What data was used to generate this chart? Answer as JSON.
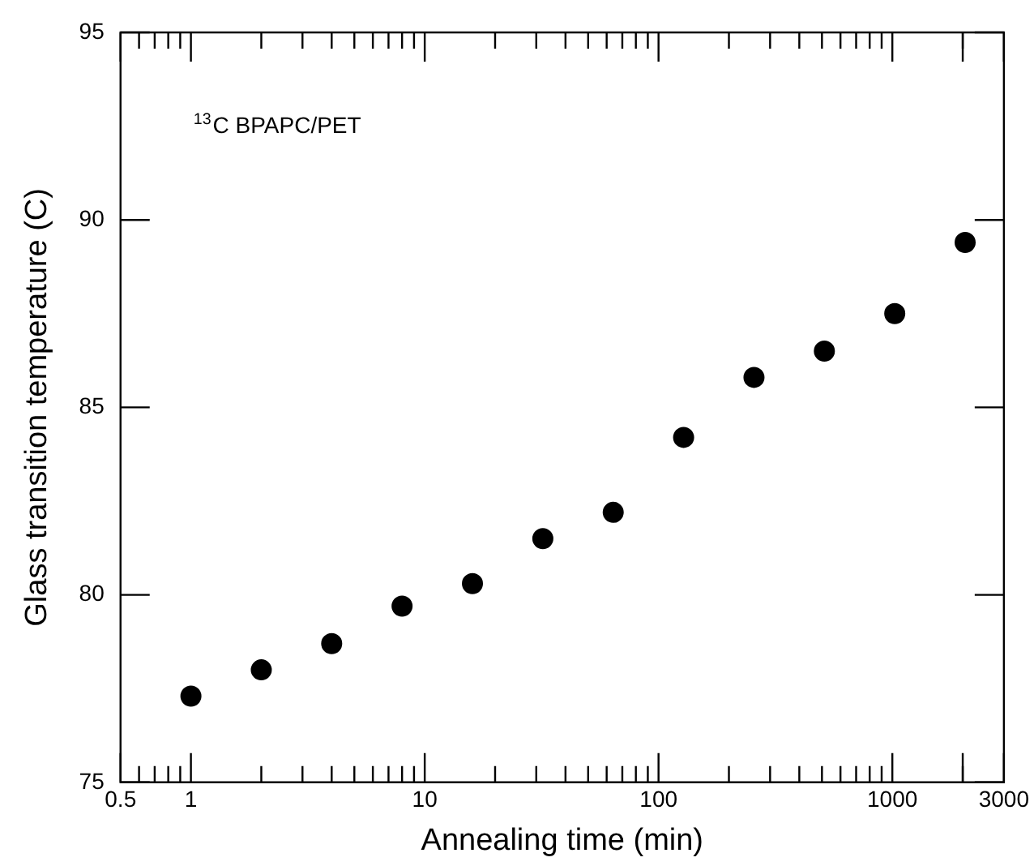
{
  "chart_data": {
    "type": "scatter",
    "xlabel": "Annealing time (min)",
    "ylabel": "Glass transition temperature (C)",
    "annotations": [
      "$^{13}$C BPAPC/PET"
    ],
    "x": [
      1,
      2,
      4,
      8,
      16,
      32,
      64,
      128,
      256,
      512,
      1024,
      2048
    ],
    "series": [
      {
        "color": "#000000",
        "values": [
          77.3,
          78.0,
          78.7,
          79.7,
          80.3,
          81.5,
          82.2,
          84.2,
          85.8,
          86.5,
          87.5,
          89.4
        ]
      }
    ],
    "log": "x",
    "xlim": [
      0.5,
      3000
    ],
    "xticks": [
      0.5,
      1,
      10,
      100,
      1000,
      {
        "value": 2000,
        "label": null
      },
      3000
    ],
    "ylim": [
      75,
      95
    ],
    "yticks": [
      75,
      80,
      85,
      90,
      95
    ],
    "grid": false,
    "legend": false,
    "marker": "circle"
  }
}
